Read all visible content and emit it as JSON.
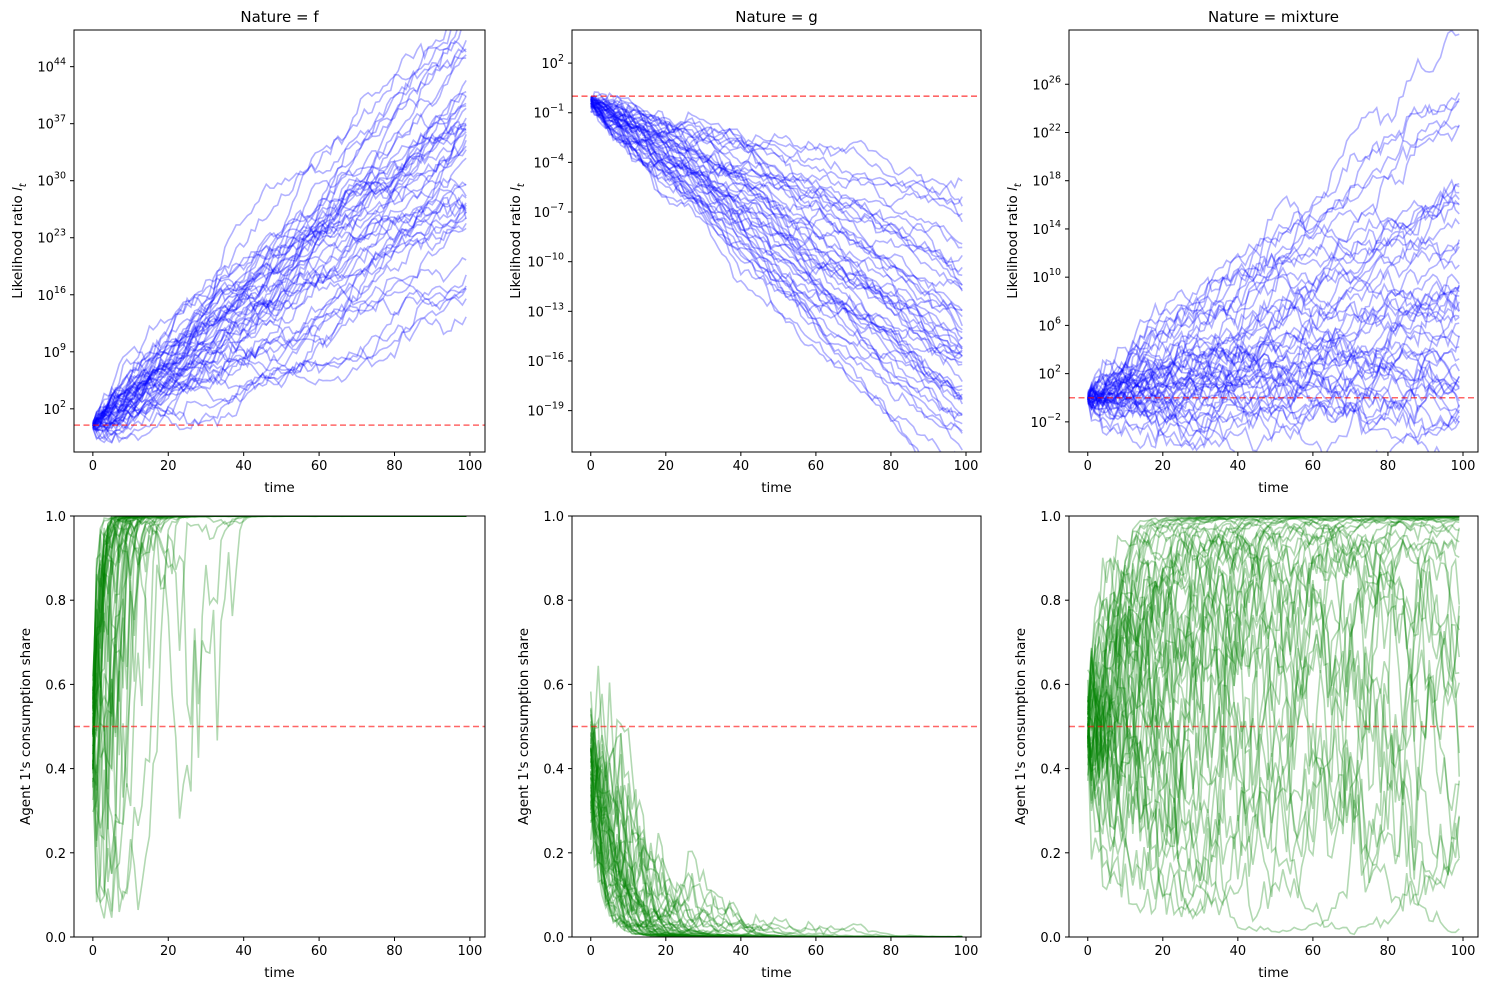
{
  "colors": {
    "likelihood_paths": "#0000ff",
    "share_paths": "#008000",
    "reference_line": "#ff0000",
    "axes": "#000000"
  },
  "chart_data": [
    {
      "type": "line",
      "panel": "top-left",
      "title": "Nature = f",
      "xlabel": "time",
      "ylabel": "Likelihood ratio",
      "ylabel_symbol": "l",
      "ylabel_sub": "t",
      "x_ticks": [
        "0",
        "20",
        "40",
        "60",
        "80",
        "100"
      ],
      "y_scale": "log",
      "y_ticks": [
        {
          "exp": 2,
          "label": "10"
        },
        {
          "exp": 9,
          "label": "10"
        },
        {
          "exp": 16,
          "label": "10"
        },
        {
          "exp": 23,
          "label": "10"
        },
        {
          "exp": 30,
          "label": "10"
        },
        {
          "exp": 37,
          "label": "10"
        },
        {
          "exp": 44,
          "label": "10"
        }
      ],
      "xlim": [
        -5,
        104
      ],
      "ylim_log10": [
        -3.3,
        48.5
      ],
      "reference_line_log10": 0,
      "paths": {
        "count": 50,
        "start_log10": 0,
        "mean_drift_log10": 0.33,
        "drift_spread": 0.07,
        "step_noise": 1.1,
        "seed": 11,
        "n_steps": 100
      }
    },
    {
      "type": "line",
      "panel": "top-middle",
      "title": "Nature = g",
      "xlabel": "time",
      "ylabel": "Likelihood ratio",
      "ylabel_symbol": "l",
      "ylabel_sub": "t",
      "x_ticks": [
        "0",
        "20",
        "40",
        "60",
        "80",
        "100"
      ],
      "y_scale": "log",
      "y_ticks": [
        {
          "exp": 2,
          "label": "10"
        },
        {
          "exp": -1,
          "label": "10"
        },
        {
          "exp": -4,
          "label": "10"
        },
        {
          "exp": -7,
          "label": "10"
        },
        {
          "exp": -10,
          "label": "10"
        },
        {
          "exp": -13,
          "label": "10"
        },
        {
          "exp": -16,
          "label": "10"
        },
        {
          "exp": -19,
          "label": "10"
        }
      ],
      "xlim": [
        -5,
        104
      ],
      "ylim_log10": [
        -21.5,
        4.0
      ],
      "reference_line_log10": 0,
      "paths": {
        "count": 50,
        "start_log10": -0.3,
        "mean_drift_log10": -0.165,
        "drift_spread": 0.035,
        "step_noise": 0.42,
        "seed": 23,
        "n_steps": 100
      }
    },
    {
      "type": "line",
      "panel": "top-right",
      "title": "Nature = mixture",
      "xlabel": "time",
      "ylabel": "Likelihood ratio",
      "ylabel_symbol": "l",
      "ylabel_sub": "t",
      "x_ticks": [
        "0",
        "20",
        "40",
        "60",
        "80",
        "100"
      ],
      "y_scale": "log",
      "y_ticks": [
        {
          "exp": -2,
          "label": "10"
        },
        {
          "exp": 2,
          "label": "10"
        },
        {
          "exp": 6,
          "label": "10"
        },
        {
          "exp": 10,
          "label": "10"
        },
        {
          "exp": 14,
          "label": "10"
        },
        {
          "exp": 18,
          "label": "10"
        },
        {
          "exp": 22,
          "label": "10"
        },
        {
          "exp": 26,
          "label": "10"
        }
      ],
      "xlim": [
        -5,
        104
      ],
      "ylim_log10": [
        -4.5,
        30.5
      ],
      "reference_line_log10": 0,
      "paths": {
        "count": 50,
        "start_log10": 0,
        "mean_drift_log10": 0.09,
        "drift_spread": 0.07,
        "step_noise": 1.0,
        "seed": 37,
        "n_steps": 100
      }
    },
    {
      "type": "line",
      "panel": "bottom-left",
      "title": "",
      "xlabel": "time",
      "ylabel": "Agent 1's consumption share",
      "x_ticks": [
        "0",
        "20",
        "40",
        "60",
        "80",
        "100"
      ],
      "y_scale": "linear",
      "y_ticks": [
        "0.0",
        "0.2",
        "0.4",
        "0.6",
        "0.8",
        "1.0"
      ],
      "xlim": [
        -5,
        104
      ],
      "ylim": [
        0,
        1
      ],
      "reference_line": 0.5,
      "paths": {
        "derived_from_panel": 0,
        "count": 50,
        "seed": 11
      }
    },
    {
      "type": "line",
      "panel": "bottom-middle",
      "title": "",
      "xlabel": "time",
      "ylabel": "Agent 1's consumption share",
      "x_ticks": [
        "0",
        "20",
        "40",
        "60",
        "80",
        "100"
      ],
      "y_scale": "linear",
      "y_ticks": [
        "0.0",
        "0.2",
        "0.4",
        "0.6",
        "0.8",
        "1.0"
      ],
      "xlim": [
        -5,
        104
      ],
      "ylim": [
        0,
        1
      ],
      "reference_line": 0.5,
      "paths": {
        "derived_from_panel": 1,
        "count": 50,
        "seed": 23
      }
    },
    {
      "type": "line",
      "panel": "bottom-right",
      "title": "",
      "xlabel": "time",
      "ylabel": "Agent 1's consumption share",
      "x_ticks": [
        "0",
        "20",
        "40",
        "60",
        "80",
        "100"
      ],
      "y_scale": "linear",
      "y_ticks": [
        "0.0",
        "0.2",
        "0.4",
        "0.6",
        "0.8",
        "1.0"
      ],
      "xlim": [
        -5,
        104
      ],
      "ylim": [
        0,
        1
      ],
      "reference_line": 0.5,
      "paths": {
        "derived_from_panel": 2,
        "count": 50,
        "seed": 37
      }
    }
  ]
}
